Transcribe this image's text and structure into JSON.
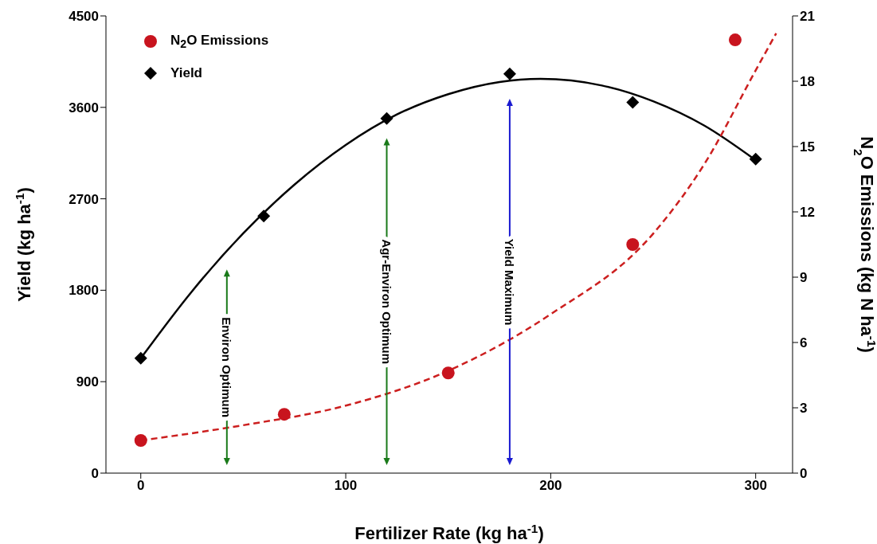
{
  "chart_data": {
    "type": "scatter",
    "xlabel": "Fertilizer Rate (kg ha$^{-1}$)",
    "ylabel": "Yield (kg ha$^{-1}$)",
    "y2label": "N$_{2}$O Emissions (kg N ha$^{-1}$)",
    "xlim": [
      -17,
      318
    ],
    "xticks": [
      0,
      100,
      200,
      300
    ],
    "ylim": [
      0,
      4500
    ],
    "yticks": [
      0,
      900,
      1800,
      2700,
      3600,
      4500
    ],
    "y2lim": [
      0,
      21
    ],
    "y2ticks": [
      0,
      3,
      6,
      9,
      12,
      15,
      18,
      21
    ],
    "grid": false,
    "legend": "top left",
    "series": [
      {
        "name": "N$_{2}$O Emissions",
        "marker": "circle",
        "color": "#c8141e",
        "axis": "y2",
        "x": [
          0,
          70,
          150,
          240,
          290
        ],
        "values": [
          1.5,
          2.7,
          4.6,
          10.5,
          19.9
        ]
      },
      {
        "name": "Yield",
        "marker": "diamond",
        "color": "#000000",
        "x": [
          0,
          60,
          120,
          180,
          240,
          300
        ],
        "values": [
          1130,
          2530,
          3490,
          3930,
          3650,
          3090
        ]
      },
      {
        "type": "line",
        "marker": "none",
        "line_style": "solid",
        "color": "#000000",
        "x": [
          0,
          25,
          50,
          75,
          100,
          125,
          150,
          175,
          195,
          225,
          250,
          275,
          300
        ],
        "values": [
          1130,
          1790,
          2360,
          2840,
          3230,
          3530,
          3730,
          3850,
          3880,
          3815,
          3660,
          3420,
          3080
        ]
      },
      {
        "type": "line",
        "marker": "none",
        "line_style": "dashed",
        "color": "#cc1f1f",
        "axis": "y2",
        "x": [
          0,
          50,
          100,
          150,
          200,
          250,
          275,
          300,
          310
        ],
        "values": [
          1.5,
          2.2,
          3.1,
          4.7,
          7.3,
          11.0,
          14.2,
          18.5,
          20.2
        ]
      }
    ],
    "ref_lines": [
      {
        "axis": "x",
        "value": 42,
        "label": "Environ Optimum",
        "color": "#1a7a1a"
      },
      {
        "axis": "x",
        "value": 120,
        "label": "Agr-Environ Optimum",
        "color": "#1a7a1a"
      },
      {
        "axis": "x",
        "value": 180,
        "label": "Yield Maximum",
        "color": "#1a1ad0"
      }
    ]
  }
}
